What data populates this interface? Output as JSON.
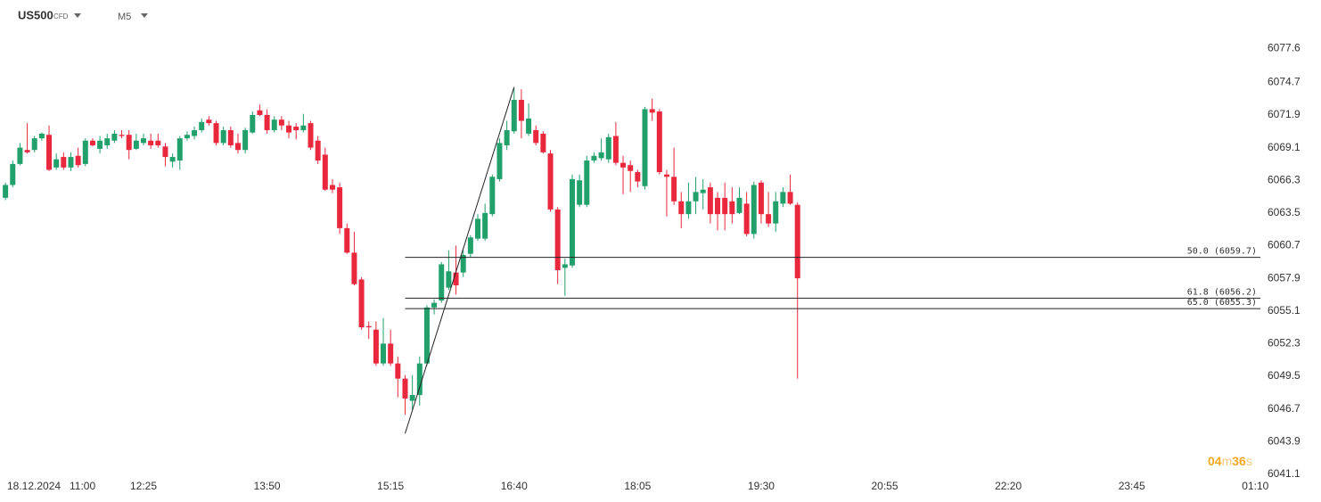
{
  "header": {
    "symbol": "US500",
    "symbol_type": "CFD",
    "timeframe": "M5"
  },
  "countdown": {
    "minutes": "04",
    "minutes_unit": "m",
    "seconds": "36",
    "seconds_unit": "s"
  },
  "chart_data": {
    "type": "candlestick",
    "date": "18.12.2024",
    "up_color": "#22a06b",
    "down_color": "#e9283d",
    "xlim": [
      -0.75,
      172.7
    ],
    "xticks": [
      {
        "value": 2,
        "label": "11:00"
      },
      {
        "value": 19,
        "label": "12:25"
      },
      {
        "value": 36,
        "label": "13:50"
      },
      {
        "value": 53,
        "label": "15:15"
      },
      {
        "value": 70,
        "label": "16:40"
      },
      {
        "value": 87,
        "label": "18:05"
      },
      {
        "value": 104,
        "label": "19:30"
      },
      {
        "value": 121,
        "label": "20:55"
      },
      {
        "value": 138,
        "label": "22:20"
      },
      {
        "value": 155,
        "label": "23:45"
      },
      {
        "value": 172,
        "label": "01:10"
      }
    ],
    "ylim": [
      6040.1,
      6078.7
    ],
    "yticks": [
      6077.6,
      6074.7,
      6071.9,
      6069.1,
      6066.3,
      6063.5,
      6060.7,
      6057.9,
      6055.1,
      6052.3,
      6049.5,
      6046.7,
      6043.9,
      6041.1
    ],
    "open": [
      6064.8,
      6065.9,
      6067.7,
      6068.9,
      6068.9,
      6069.9,
      6070.2,
      6067.4,
      6068.3,
      6067.4,
      6068.4,
      6067.7,
      6069.7,
      6069.0,
      6069.3,
      6069.7,
      6070.2,
      6070.2,
      6069.0,
      6069.5,
      6069.7,
      6069.7,
      6069.2,
      6067.9,
      6068.0,
      6069.9,
      6070.1,
      6070.6,
      6071.5,
      6071.2,
      6069.5,
      6070.6,
      6069.5,
      6068.9,
      6070.4,
      6072.3,
      6071.9,
      6070.6,
      6071.5,
      6071.0,
      6070.9,
      6070.6,
      6071.2,
      6069.7,
      6068.5,
      6065.9,
      6065.7,
      6062.2,
      6060.1,
      6057.8,
      6053.8,
      6053.5,
      6050.6,
      6052.3,
      6050.6,
      6049.3,
      6047.4,
      6047.9,
      6050.6,
      6055.4,
      6056.0,
      6057.1,
      6058.4,
      6058.4,
      6060.0,
      6061.3,
      6061.3,
      6063.4,
      6066.4,
      6069.3,
      6070.5,
      6073.2,
      6070.3,
      6070.6,
      6070.3,
      6068.6,
      6063.8,
      6058.8,
      6059.0,
      6064.2,
      6064.2,
      6068.0,
      6068.2,
      6068.1,
      6070.1,
      6067.8,
      6067.6,
      6067.0,
      6065.8,
      6072.4,
      6072.2,
      6066.8,
      6066.6,
      6064.5,
      6063.4,
      6064.5,
      6065.2,
      6065.7,
      6064.8,
      6064.8,
      6064.5,
      6063.5,
      6064.3,
      6061.7,
      6066.1,
      6063.4,
      6062.6,
      6064.3,
      6065.3,
      6064.2
    ],
    "high": [
      6066.1,
      6068.0,
      6069.5,
      6071.2,
      6070.1,
      6070.4,
      6071.0,
      6068.6,
      6068.7,
      6068.7,
      6069.1,
      6069.9,
      6069.9,
      6070.1,
      6070.3,
      6070.6,
      6070.6,
      6070.6,
      6070.3,
      6070.3,
      6070.3,
      6070.3,
      6069.5,
      6068.6,
      6070.1,
      6070.5,
      6070.9,
      6071.6,
      6071.8,
      6071.4,
      6070.9,
      6070.9,
      6070.3,
      6070.8,
      6072.2,
      6072.8,
      6072.4,
      6071.8,
      6071.8,
      6071.4,
      6071.2,
      6072.0,
      6071.4,
      6070.1,
      6069.1,
      6066.4,
      6066.1,
      6062.6,
      6061.9,
      6058.0,
      6054.2,
      6054.2,
      6054.5,
      6053.5,
      6051.2,
      6049.6,
      6049.6,
      6051.2,
      6055.6,
      6056.1,
      6059.3,
      6060.3,
      6060.7,
      6060.3,
      6061.6,
      6063.4,
      6064.3,
      6066.8,
      6069.9,
      6071.4,
      6074.2,
      6074.1,
      6072.9,
      6071.0,
      6070.5,
      6068.9,
      6064.0,
      6059.6,
      6066.8,
      6066.8,
      6068.4,
      6068.7,
      6069.9,
      6070.3,
      6071.3,
      6068.4,
      6068.0,
      6067.2,
      6072.6,
      6073.3,
      6072.4,
      6067.2,
      6069.1,
      6065.3,
      6066.1,
      6066.6,
      6066.4,
      6066.1,
      6065.3,
      6066.1,
      6065.7,
      6065.7,
      6065.3,
      6066.2,
      6066.3,
      6065.3,
      6065.3,
      6065.7,
      6066.8,
      6064.4
    ],
    "low": [
      6064.6,
      6065.7,
      6067.6,
      6068.6,
      6068.7,
      6069.7,
      6067.1,
      6067.2,
      6067.2,
      6067.1,
      6067.4,
      6067.5,
      6069.2,
      6068.6,
      6069.0,
      6069.5,
      6069.9,
      6068.1,
      6068.9,
      6069.3,
      6069.0,
      6069.1,
      6067.5,
      6067.4,
      6067.2,
      6069.7,
      6069.8,
      6070.4,
      6071.0,
      6069.3,
      6069.3,
      6069.1,
      6068.6,
      6068.6,
      6070.3,
      6071.8,
      6070.3,
      6070.4,
      6070.6,
      6069.9,
      6069.8,
      6070.4,
      6068.9,
      6067.7,
      6065.4,
      6065.2,
      6061.7,
      6060.0,
      6057.3,
      6053.5,
      6052.7,
      6050.4,
      6050.4,
      6050.4,
      6047.7,
      6046.2,
      6046.6,
      6047.0,
      6050.4,
      6054.8,
      6055.8,
      6056.9,
      6056.5,
      6058.0,
      6059.7,
      6061.1,
      6061.1,
      6063.2,
      6066.2,
      6068.9,
      6070.3,
      6069.9,
      6070.1,
      6069.3,
      6068.6,
      6063.6,
      6057.4,
      6056.4,
      6058.8,
      6064.0,
      6064.0,
      6067.8,
      6068.0,
      6067.8,
      6067.6,
      6065.1,
      6065.3,
      6065.7,
      6065.5,
      6071.4,
      6066.8,
      6063.2,
      6064.2,
      6062.2,
      6063.0,
      6063.4,
      6063.8,
      6062.6,
      6062.0,
      6062.0,
      6062.6,
      6063.4,
      6061.5,
      6061.3,
      6062.6,
      6062.3,
      6061.9,
      6064.0,
      6064.2,
      6049.3
    ],
    "close": [
      6065.9,
      6067.7,
      6069.1,
      6068.7,
      6069.9,
      6070.3,
      6067.2,
      6068.1,
      6067.4,
      6068.3,
      6067.6,
      6069.7,
      6069.3,
      6069.7,
      6069.9,
      6070.3,
      6070.1,
      6068.9,
      6069.7,
      6069.9,
      6069.3,
      6069.3,
      6068.3,
      6068.3,
      6069.9,
      6070.2,
      6070.6,
      6071.3,
      6071.2,
      6069.5,
      6070.6,
      6069.3,
      6068.9,
      6070.6,
      6071.9,
      6071.9,
      6070.6,
      6071.5,
      6071.0,
      6070.4,
      6070.6,
      6071.0,
      6069.1,
      6068.0,
      6065.5,
      6065.5,
      6062.2,
      6060.1,
      6057.4,
      6053.7,
      6053.7,
      6050.6,
      6052.3,
      6050.6,
      6049.3,
      6047.6,
      6047.9,
      6050.6,
      6055.4,
      6055.8,
      6059.1,
      6058.5,
      6057.3,
      6059.9,
      6061.4,
      6063.0,
      6063.5,
      6066.6,
      6069.5,
      6070.6,
      6073.2,
      6071.4,
      6071.6,
      6069.5,
      6068.7,
      6063.8,
      6058.6,
      6059.1,
      6066.4,
      6066.3,
      6068.0,
      6068.4,
      6068.7,
      6070.0,
      6067.8,
      6067.4,
      6067.1,
      6066.2,
      6072.4,
      6072.1,
      6067.0,
      6066.6,
      6064.5,
      6063.4,
      6064.5,
      6065.3,
      6065.5,
      6063.4,
      6063.4,
      6063.4,
      6063.4,
      6064.8,
      6061.7,
      6065.9,
      6063.4,
      6062.6,
      6064.5,
      6065.3,
      6064.3,
      6057.9
    ],
    "trend_line": {
      "x": [
        55,
        70
      ],
      "y": [
        6044.6,
        6074.3
      ]
    },
    "fib_levels": [
      {
        "label": "50.0 (6059.7)",
        "value": 6059.7,
        "x_start": 55
      },
      {
        "label": "61.8 (6056.2)",
        "value": 6056.2,
        "x_start": 55
      },
      {
        "label": "65.0 (6055.3)",
        "value": 6055.3,
        "x_start": 55
      }
    ]
  }
}
